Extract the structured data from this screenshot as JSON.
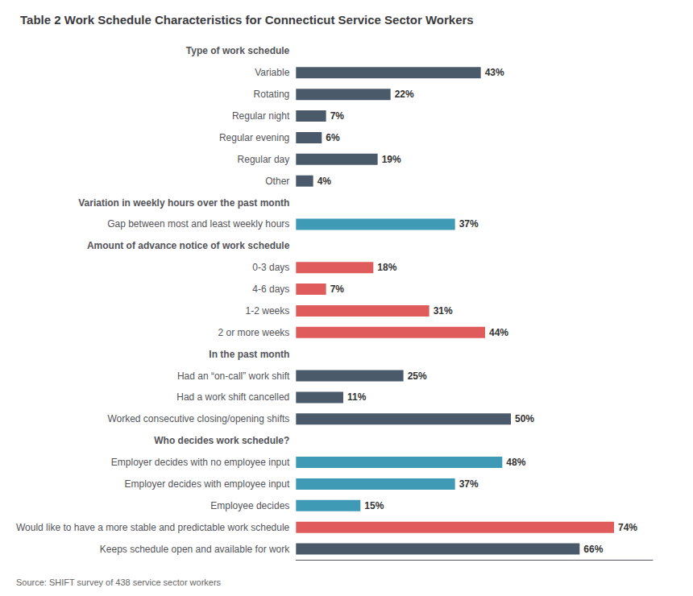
{
  "chart_data": {
    "type": "bar",
    "orientation": "horizontal",
    "title": "Table 2 Work Schedule Characteristics for Connecticut Service Sector Workers",
    "annotations": [
      "Source: SHIFT survey of 438 service sector workers"
    ],
    "categories": [
      "Type of work schedule",
      "Variable",
      "Rotating",
      "Regular night",
      "Regular evening",
      "Regular day",
      "Other",
      "Variation in weekly hours over the past month",
      "Gap between most and least weekly hours",
      "Amount of advance notice of work schedule",
      "0-3 days",
      "4-6 days",
      "1-2 weeks",
      "2 or more weeks",
      "In the past month",
      "Had an “on-call” work shift",
      "Had a work shift cancelled",
      "Worked consecutive closing/opening shifts",
      "Who decides work schedule?",
      "Employer decides with no employee input",
      "Employer decides with employee input",
      "Employee decides",
      "Would like to have a more stable and predictable work schedule",
      "Keeps schedule open and available for work"
    ],
    "values": [
      null,
      43,
      22,
      7,
      6,
      19,
      4,
      null,
      37,
      null,
      18,
      7,
      31,
      44,
      null,
      25,
      11,
      50,
      null,
      48,
      37,
      15,
      74,
      66
    ],
    "value_labels": [
      null,
      "43%",
      "22%",
      "7%",
      "6%",
      "19%",
      "4%",
      null,
      "37%",
      null,
      "18%",
      "7%",
      "31%",
      "44%",
      null,
      "25%",
      "11%",
      "50%",
      null,
      "48%",
      "37%",
      "15%",
      "74%",
      "66%"
    ],
    "colors": [
      null,
      "#4a5a6b",
      "#4a5a6b",
      "#4a5a6b",
      "#4a5a6b",
      "#4a5a6b",
      "#4a5a6b",
      null,
      "#3e9ab5",
      null,
      "#e05c5c",
      "#e05c5c",
      "#e05c5c",
      "#e05c5c",
      null,
      "#4a5a6b",
      "#4a5a6b",
      "#4a5a6b",
      null,
      "#3e9ab5",
      "#3e9ab5",
      "#3e9ab5",
      "#e05c5c",
      "#4a5a6b"
    ],
    "data_labels": true,
    "xlim": [
      0,
      83
    ],
    "grid": false,
    "tick_labels": "y"
  }
}
